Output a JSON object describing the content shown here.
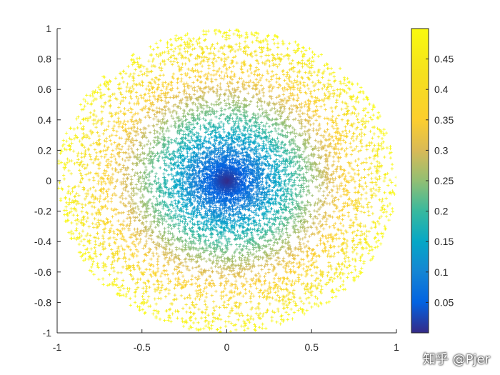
{
  "watermark": "知乎 @Pjer",
  "chart_data": {
    "type": "scatter",
    "title": "",
    "xlabel": "",
    "ylabel": "",
    "xlim": [
      -1,
      1
    ],
    "ylim": [
      -1,
      1
    ],
    "grid": false,
    "x_ticks": [
      -1,
      -0.5,
      0,
      0.5,
      1
    ],
    "x_tick_labels": [
      "-1",
      "-0.5",
      "0",
      "0.5",
      "1"
    ],
    "y_ticks": [
      -1,
      -0.8,
      -0.6,
      -0.4,
      -0.2,
      0,
      0.2,
      0.4,
      0.6,
      0.8,
      1
    ],
    "y_tick_labels": [
      "-1",
      "-0.8",
      "-0.6",
      "-0.4",
      "-0.2",
      "0",
      "0.2",
      "0.4",
      "0.6",
      "0.8",
      "1"
    ],
    "marker": "+",
    "point_count": 9000,
    "distribution": "points inside the unit disk, densest at the origin; color = 0.5 * distance from origin",
    "color_value_range": [
      0,
      0.5
    ],
    "colormap": "parula",
    "colorbar": {
      "limits": [
        0,
        0.5
      ],
      "ticks": [
        0.05,
        0.1,
        0.15,
        0.2,
        0.25,
        0.3,
        0.35,
        0.4,
        0.45
      ],
      "tick_labels": [
        "0.05",
        "0.1",
        "0.15",
        "0.2",
        "0.25",
        "0.3",
        "0.35",
        "0.4",
        "0.45"
      ],
      "location": "right"
    },
    "colors": {
      "low": "#352a87",
      "mid": "#1fbfb8",
      "high": "#f9fb0e",
      "axis": "#262626"
    }
  }
}
